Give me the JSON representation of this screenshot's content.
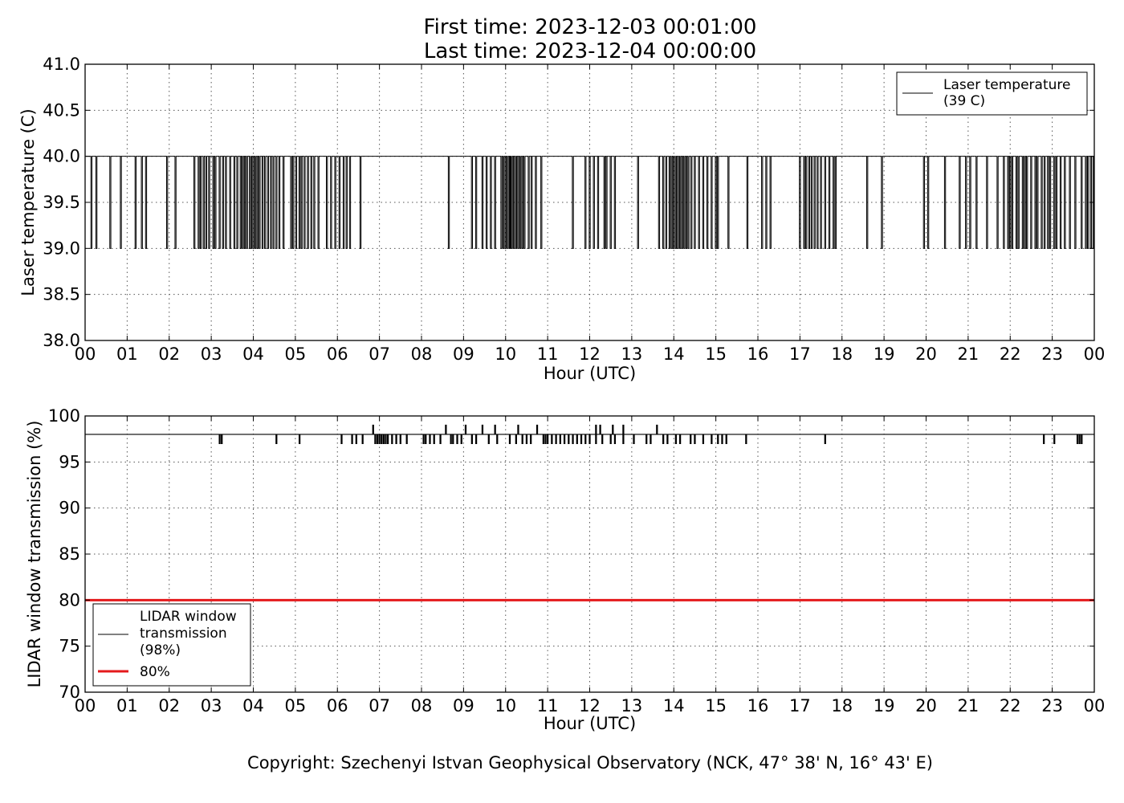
{
  "title_lines": [
    "First time: 2023-12-03 00:01:00",
    "Last time: 2023-12-04 00:00:00"
  ],
  "copyright": "Copyright: Szechenyi Istvan Geophysical Observatory (NCK, 47° 38' N, 16° 43' E)",
  "chart_data": [
    {
      "type": "line",
      "xlabel": "Hour (UTC)",
      "ylabel": "Laser temperature (C)",
      "xlim": [
        0,
        24
      ],
      "ylim": [
        38.0,
        41.0
      ],
      "xticks": [
        0,
        1,
        2,
        3,
        4,
        5,
        6,
        7,
        8,
        9,
        10,
        11,
        12,
        13,
        14,
        15,
        16,
        17,
        18,
        19,
        20,
        21,
        22,
        23,
        24
      ],
      "xtick_labels": [
        "00",
        "01",
        "02",
        "03",
        "04",
        "05",
        "06",
        "07",
        "08",
        "09",
        "10",
        "11",
        "12",
        "13",
        "14",
        "15",
        "16",
        "17",
        "18",
        "19",
        "20",
        "21",
        "22",
        "23",
        "00"
      ],
      "yticks": [
        38.0,
        38.5,
        39.0,
        39.5,
        40.0,
        40.5,
        41.0
      ],
      "ytick_labels": [
        "38.0",
        "38.5",
        "39.0",
        "39.5",
        "40.0",
        "40.5",
        "41.0"
      ],
      "grid": true,
      "legend_position": "top-right",
      "series": [
        {
          "name": "Laser temperature\n(39 C)",
          "color": "#000000",
          "baseline": 40.0,
          "dip_value": 39.0,
          "dips_hours": [
            0.15,
            0.27,
            0.6,
            0.85,
            1.2,
            1.35,
            1.45,
            1.95,
            2.15,
            2.6,
            2.7,
            2.75,
            2.82,
            2.88,
            2.95,
            3.05,
            3.1,
            3.2,
            3.28,
            3.35,
            3.45,
            3.55,
            3.62,
            3.7,
            3.75,
            3.8,
            3.85,
            3.92,
            3.95,
            4.0,
            4.05,
            4.1,
            4.15,
            4.22,
            4.28,
            4.35,
            4.42,
            4.48,
            4.55,
            4.62,
            4.72,
            4.9,
            4.95,
            5.02,
            5.1,
            5.15,
            5.22,
            5.3,
            5.38,
            5.45,
            5.55,
            5.75,
            5.85,
            5.95,
            6.05,
            6.15,
            6.22,
            6.3,
            6.55,
            8.65,
            9.2,
            9.3,
            9.45,
            9.55,
            9.65,
            9.75,
            9.9,
            9.95,
            10.0,
            10.05,
            10.1,
            10.12,
            10.15,
            10.2,
            10.25,
            10.3,
            10.35,
            10.4,
            10.45,
            10.55,
            10.62,
            10.72,
            10.85,
            11.6,
            11.9,
            12.0,
            12.1,
            12.2,
            12.35,
            12.4,
            12.5,
            12.6,
            13.15,
            13.65,
            13.75,
            13.82,
            13.9,
            13.95,
            14.0,
            14.05,
            14.1,
            14.15,
            14.2,
            14.25,
            14.3,
            14.35,
            14.42,
            14.5,
            14.6,
            14.7,
            14.8,
            14.9,
            15.0,
            15.05,
            15.3,
            15.75,
            16.1,
            16.2,
            16.3,
            17.0,
            17.1,
            17.15,
            17.22,
            17.28,
            17.35,
            17.42,
            17.5,
            17.6,
            17.7,
            17.8,
            17.85,
            18.6,
            18.95,
            19.95,
            20.05,
            20.45,
            20.8,
            20.95,
            21.05,
            21.2,
            21.45,
            21.7,
            21.85,
            21.95,
            22.0,
            22.05,
            22.15,
            22.2,
            22.3,
            22.35,
            22.4,
            22.5,
            22.6,
            22.65,
            22.75,
            22.82,
            22.9,
            22.95,
            23.05,
            23.1,
            23.2,
            23.3,
            23.42,
            23.55,
            23.7,
            23.8,
            23.85,
            23.92,
            23.98
          ]
        }
      ]
    },
    {
      "type": "line",
      "xlabel": "Hour (UTC)",
      "ylabel": "LIDAR window transmission (%)",
      "xlim": [
        0,
        24
      ],
      "ylim": [
        70,
        100
      ],
      "xticks": [
        0,
        1,
        2,
        3,
        4,
        5,
        6,
        7,
        8,
        9,
        10,
        11,
        12,
        13,
        14,
        15,
        16,
        17,
        18,
        19,
        20,
        21,
        22,
        23,
        24
      ],
      "xtick_labels": [
        "00",
        "01",
        "02",
        "03",
        "04",
        "05",
        "06",
        "07",
        "08",
        "09",
        "10",
        "11",
        "12",
        "13",
        "14",
        "15",
        "16",
        "17",
        "18",
        "19",
        "20",
        "21",
        "22",
        "23",
        "00"
      ],
      "yticks": [
        70,
        75,
        80,
        85,
        90,
        95,
        100
      ],
      "ytick_labels": [
        "70",
        "75",
        "80",
        "85",
        "90",
        "95",
        "100"
      ],
      "grid": true,
      "legend_position": "lower-left",
      "series": [
        {
          "name": "LIDAR window\ntransmission\n(98%)",
          "color": "#000000",
          "baseline": 98,
          "dips_97_hours": [
            3.2,
            3.25,
            4.55,
            5.1,
            6.1,
            6.35,
            6.45,
            6.6,
            6.9,
            6.95,
            7.0,
            7.05,
            7.1,
            7.15,
            7.2,
            7.3,
            7.4,
            7.5,
            7.65,
            8.05,
            8.1,
            8.2,
            8.3,
            8.45,
            8.7,
            8.75,
            8.85,
            8.95,
            9.2,
            9.3,
            9.6,
            9.8,
            10.1,
            10.25,
            10.4,
            10.5,
            10.6,
            10.9,
            10.95,
            11.0,
            11.1,
            11.2,
            11.3,
            11.4,
            11.5,
            11.6,
            11.7,
            11.8,
            11.9,
            12.0,
            12.15,
            12.3,
            12.5,
            12.6,
            12.8,
            13.05,
            13.35,
            13.45,
            13.75,
            13.85,
            14.05,
            14.15,
            14.4,
            14.5,
            14.7,
            14.9,
            15.05,
            15.15,
            15.25,
            15.72,
            17.6,
            22.8,
            23.05,
            23.6,
            23.65,
            23.7
          ],
          "peaks_99_hours": [
            6.85,
            8.58,
            9.05,
            9.45,
            9.75,
            10.3,
            10.75,
            12.15,
            12.25,
            12.55,
            12.8,
            13.6
          ]
        },
        {
          "name": "80%",
          "color": "#e41a1c",
          "constant": 80
        }
      ]
    }
  ]
}
